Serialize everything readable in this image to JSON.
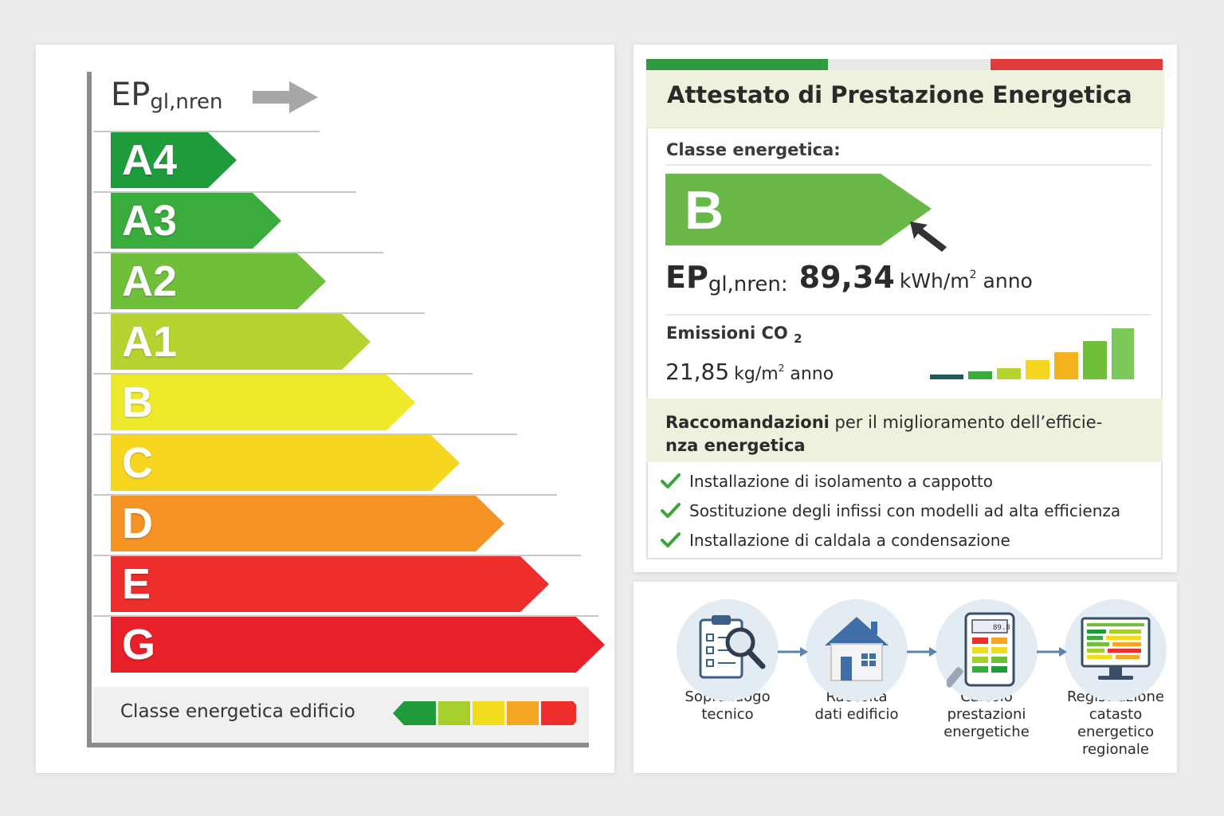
{
  "energy_chart": {
    "ep_label": {
      "main": "EP",
      "sub": "gl,nren"
    },
    "classes": [
      {
        "label": "A4",
        "color": "#1e9c3c"
      },
      {
        "label": "A3",
        "color": "#3aab3d"
      },
      {
        "label": "A2",
        "color": "#6fbf3b"
      },
      {
        "label": "A1",
        "color": "#b6d42f"
      },
      {
        "label": "B",
        "color": "#eee92a"
      },
      {
        "label": "C",
        "color": "#f6d61e"
      },
      {
        "label": "D",
        "color": "#f59324"
      },
      {
        "label": "E",
        "color": "#ee2d2d"
      },
      {
        "label": "G",
        "color": "#e8202a"
      }
    ],
    "legend_text": "Classe energetica edificio",
    "legend_colors": [
      "#1e9c3c",
      "#a6cf2c",
      "#f1dc1e",
      "#f5a623",
      "#ee2d2d"
    ]
  },
  "ape": {
    "title": "Attestato di Prestazione Energetica",
    "class_label": "Classe energetica:",
    "energy_class": "B",
    "ep_label": {
      "main": "EP",
      "sub": "gl,nren:"
    },
    "ep_value": "89,34",
    "ep_unit": "kWh/m",
    "ep_unit_exp": "2",
    "ep_unit_suffix": "anno",
    "co2_label": "Emissioni CO",
    "co2_sub": "2",
    "co2_value": "21,85",
    "co2_unit": "kg/m",
    "co2_unit_exp": "2",
    "co2_unit_suffix": "anno",
    "co2_bar_colors": [
      "#1f5a5a",
      "#3aab3d",
      "#b6d42f",
      "#f6d61e",
      "#f5b21c",
      "#6fbf3b",
      "#7ac95a"
    ],
    "recommendations_title_bold": "Raccomandazioni",
    "recommendations_title_rest": " per il miglioramento dell’efficie-",
    "recommendations_title_line2": "nza energetica",
    "recommendations": [
      "Installazione di isolamento a cappotto",
      "Sostituzione degli infissi con modelli ad alta efficienza",
      "Installazione di caldala a condensazione"
    ],
    "top_colors": [
      "#2f9a3f",
      "#e6e6e6",
      "#e23b3b"
    ]
  },
  "process": {
    "steps": [
      {
        "icon": "clipboard-magnifier-icon",
        "lines": [
          "Sopralluogo",
          "tecnico"
        ]
      },
      {
        "icon": "house-icon",
        "lines": [
          "Raccolta",
          "dati edificio"
        ]
      },
      {
        "icon": "calculator-icon",
        "lines": [
          "Calcolo",
          "prestazioni",
          "energetiche"
        ]
      },
      {
        "icon": "monitor-chart-icon",
        "lines": [
          "Registrazione",
          "catasto",
          "energetico",
          "regionale"
        ]
      }
    ],
    "calc_display": "89.8"
  }
}
